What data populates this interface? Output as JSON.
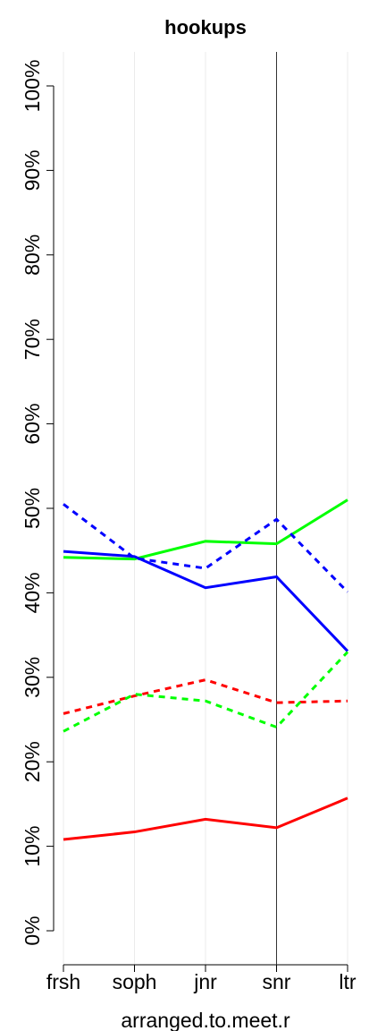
{
  "chart_data": {
    "type": "line",
    "title": "hookups",
    "x_label": "arranged.to.meet.r",
    "categories": [
      "frsh",
      "soph",
      "jnr",
      "snr",
      "ltr"
    ],
    "series": [
      {
        "color": "#00ff00",
        "dash": false,
        "values": [
          44.2,
          44.0,
          46.1,
          45.8,
          51.0
        ]
      },
      {
        "color": "#0000ff",
        "dash": false,
        "values": [
          44.9,
          44.3,
          40.6,
          41.9,
          33.1
        ]
      },
      {
        "color": "#0000ff",
        "dash": true,
        "values": [
          50.5,
          44.1,
          42.9,
          48.7,
          40.1
        ]
      },
      {
        "color": "#ff0000",
        "dash": true,
        "values": [
          25.7,
          27.8,
          29.7,
          27.0,
          27.2
        ]
      },
      {
        "color": "#00ff00",
        "dash": true,
        "values": [
          23.6,
          28.0,
          27.2,
          24.1,
          33.0
        ]
      },
      {
        "color": "#ff0000",
        "dash": false,
        "values": [
          10.8,
          11.7,
          13.2,
          12.2,
          15.7
        ]
      }
    ],
    "ylim": [
      0,
      100
    ],
    "yticks": [
      {
        "value": 0,
        "label": "0%"
      },
      {
        "value": 10,
        "label": "10%"
      },
      {
        "value": 20,
        "label": "20%"
      },
      {
        "value": 30,
        "label": "30%"
      },
      {
        "value": 40,
        "label": "40%"
      },
      {
        "value": 50,
        "label": "50%"
      },
      {
        "value": 60,
        "label": "60%"
      },
      {
        "value": 70,
        "label": "70%"
      },
      {
        "value": 80,
        "label": "80%"
      },
      {
        "value": 90,
        "label": "90%"
      },
      {
        "value": 100,
        "label": "100%"
      }
    ],
    "grid": true,
    "vline": "snr"
  }
}
